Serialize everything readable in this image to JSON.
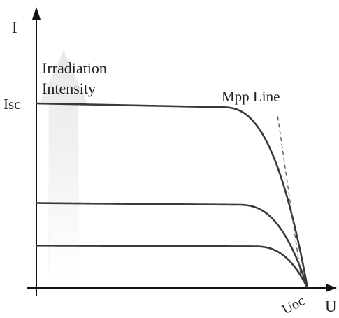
{
  "chart_data": {
    "type": "line",
    "xlabel": "U",
    "ylabel": "I",
    "ylim": [
      0,
      1
    ],
    "xlim": [
      0,
      1
    ],
    "y_tick_label": "Isc",
    "x_tick_label": "Uoc",
    "arrow_label_line1": "Irradiation",
    "arrow_label_line2": "Intensity",
    "mpp_label": "Mpp Line",
    "series": [
      {
        "isc": 1.0,
        "voc": 1.0,
        "knee_start": 0.68
      },
      {
        "isc": 0.46,
        "voc": 1.0,
        "knee_start": 0.74
      },
      {
        "isc": 0.23,
        "voc": 1.0,
        "knee_start": 0.8
      }
    ],
    "mpp_line": {
      "x": [
        0.89,
        0.976
      ],
      "y": [
        0.93,
        0.06
      ],
      "style": "dashed"
    },
    "colors": {
      "curve": "#3a3a3a",
      "axis": "#111111",
      "arrow": "#ececec",
      "mpp_line": "#555555"
    }
  }
}
